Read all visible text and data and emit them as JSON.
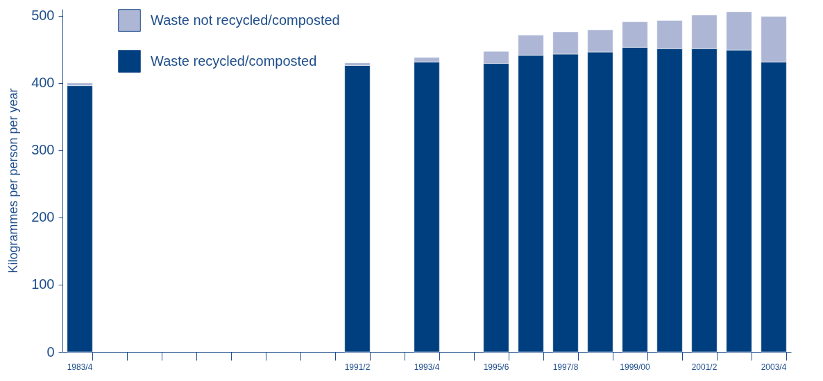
{
  "chart_data": {
    "type": "bar",
    "stacked": true,
    "ylabel": "Kilogrammes per person per year",
    "categories": [
      "1983/4",
      null,
      null,
      null,
      null,
      null,
      null,
      null,
      "1991/2",
      null,
      "1993/4",
      null,
      "1995/6",
      null,
      "1997/8",
      null,
      "1999/00",
      null,
      "2001/2",
      null,
      "2003/4"
    ],
    "series": [
      {
        "name": "Waste recycled/composted",
        "color": "#003f7f",
        "values": [
          396,
          null,
          null,
          null,
          null,
          null,
          null,
          null,
          426,
          null,
          431,
          null,
          429,
          441,
          443,
          446,
          453,
          451,
          451,
          449,
          431
        ]
      },
      {
        "name": "Waste not recycled/composted",
        "color": "#adb7d5",
        "values": [
          4,
          null,
          null,
          null,
          null,
          null,
          null,
          null,
          4,
          null,
          7,
          null,
          18,
          30,
          33,
          33,
          38,
          42,
          50,
          57,
          68
        ]
      }
    ],
    "ylim": [
      0,
      510
    ],
    "yticks": [
      0,
      100,
      200,
      300,
      400,
      500
    ],
    "grid": false,
    "legend": "top left"
  }
}
